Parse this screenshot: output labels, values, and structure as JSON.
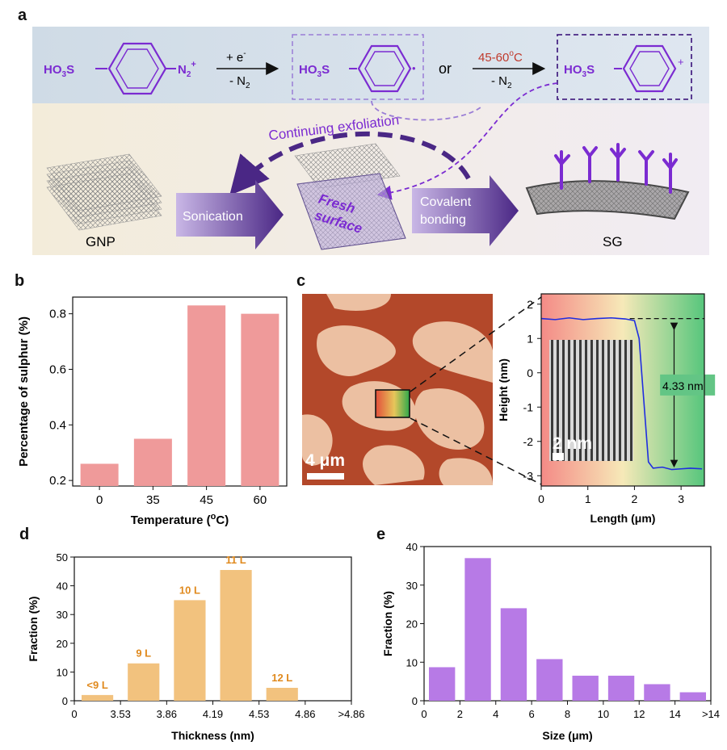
{
  "panel_labels": {
    "a": "a",
    "b": "b",
    "c": "c",
    "d": "d",
    "e": "e"
  },
  "scheme": {
    "reactant_prefix": "HO",
    "reactant_sub3": "3",
    "reactant_s": "S",
    "diazo": "N",
    "diazo_sub": "2",
    "diazo_sup": "+",
    "step1_top": "+ e",
    "step1_top_sup": "-",
    "step1_bottom": "- N",
    "step1_bottom_sub": "2",
    "or": "or",
    "step2_top": "45-60",
    "step2_top_sup": "o",
    "step2_top_unit": "C",
    "step2_bottom": "- N",
    "step2_bottom_sub": "2",
    "radical_dot": "•",
    "cation_plus": "+",
    "continuing": "Continuing exfoliation",
    "sonication": "Sonication",
    "fresh_surface_1": "Fresh",
    "fresh_surface_2": "surface",
    "covalent_1": "Covalent",
    "covalent_2": "bonding",
    "gnp": "GNP",
    "sg": "SG"
  },
  "afm": {
    "scalebar_main": "4 μm",
    "scalebar_inset": "2 nm",
    "step_label": "4.33 nm"
  },
  "colors": {
    "bar_b": "#ef9a9a",
    "bar_d": "#f2c27e",
    "bar_e": "#b77ae6",
    "purple": "#7b2bd1",
    "dark_purple": "#4a2785",
    "red_text": "#c0392b",
    "orange_label": "#e08a1e",
    "profile": "#1f2de0"
  },
  "chart_data": [
    {
      "id": "b",
      "type": "bar",
      "categories": [
        "0",
        "35",
        "45",
        "60"
      ],
      "values": [
        0.26,
        0.35,
        0.83,
        0.8
      ],
      "xlabel": "Temperature (",
      "xlabel_sup": "o",
      "xlabel_end": "C)",
      "ylabel": "Percentage of sulphur (%)",
      "ylim": [
        0.18,
        0.86
      ],
      "yticks": [
        "0.2",
        "0.4",
        "0.6",
        "0.8"
      ]
    },
    {
      "id": "c",
      "type": "line",
      "x": [
        0,
        0.3,
        0.6,
        0.9,
        1.2,
        1.5,
        1.8,
        2.0,
        2.1,
        2.2,
        2.3,
        2.4,
        2.6,
        2.8,
        3.0,
        3.2,
        3.45
      ],
      "y": [
        1.58,
        1.55,
        1.6,
        1.55,
        1.58,
        1.6,
        1.57,
        1.52,
        1.0,
        -0.8,
        -2.6,
        -2.78,
        -2.75,
        -2.82,
        -2.8,
        -2.78,
        -2.8
      ],
      "xlabel": "Length (μm)",
      "ylabel": "Height (nm)",
      "xlim": [
        0,
        3.5
      ],
      "ylim": [
        -3.3,
        2.3
      ],
      "xticks": [
        "0",
        "1",
        "2",
        "3"
      ],
      "yticks": [
        "-3",
        "-2",
        "-1",
        "0",
        "1",
        "2"
      ]
    },
    {
      "id": "d",
      "type": "bar",
      "categories": [
        "<9 L",
        "9 L",
        "10 L",
        "11 L",
        "12 L"
      ],
      "values": [
        2,
        13,
        35,
        45.5,
        4.5
      ],
      "xticks": [
        "0",
        "3.53",
        "3.86",
        "4.19",
        "4.53",
        "4.86",
        ">4.86"
      ],
      "xlabel": "Thickness (nm)",
      "ylabel": "Fraction (%)",
      "ylim": [
        0,
        50
      ],
      "yticks": [
        "0",
        "10",
        "20",
        "30",
        "40",
        "50"
      ]
    },
    {
      "id": "e",
      "type": "bar",
      "categories": [
        "0-2",
        "2-4",
        "4-6",
        "6-8",
        "8-10",
        "10-12",
        "12-14",
        ">14"
      ],
      "values": [
        8.7,
        37,
        24,
        10.8,
        6.5,
        6.5,
        4.3,
        2.2
      ],
      "xticks": [
        "0",
        "2",
        "4",
        "6",
        "8",
        "10",
        "12",
        "14",
        ">14"
      ],
      "xlabel": "Size (μm)",
      "ylabel": "Fraction (%)",
      "ylim": [
        0,
        40
      ],
      "yticks": [
        "0",
        "10",
        "20",
        "30",
        "40"
      ]
    }
  ]
}
